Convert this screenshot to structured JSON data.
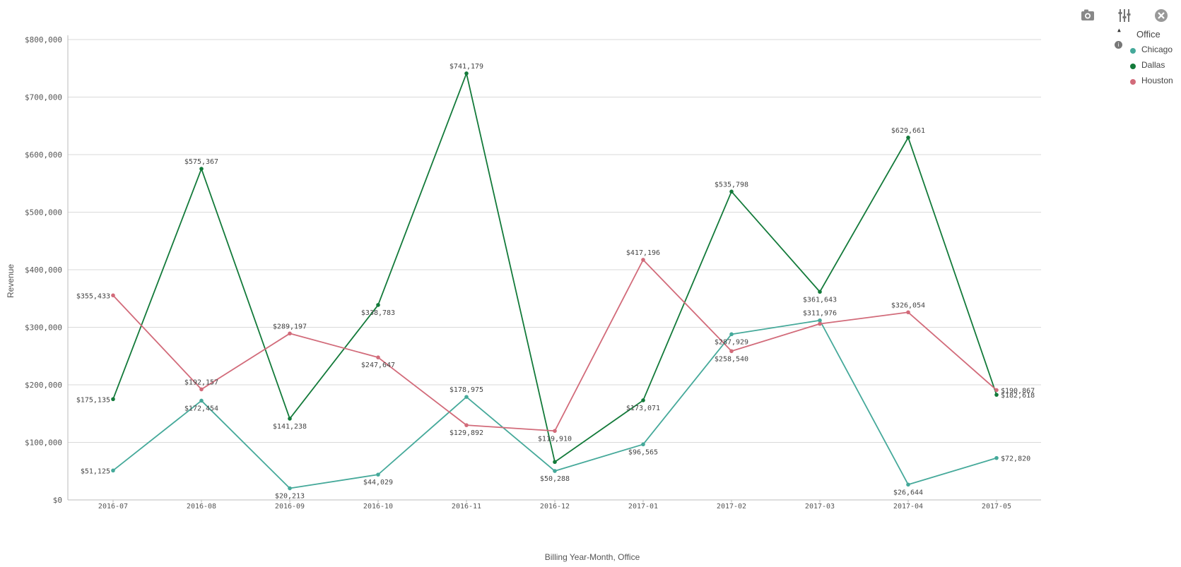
{
  "toolbar": {
    "snapshot_icon": "camera-icon",
    "exploration_icon": "sliders-icon",
    "close_icon": "close-icon"
  },
  "legend": {
    "title": "Office",
    "items": [
      {
        "label": "Chicago",
        "color": "#45a99a"
      },
      {
        "label": "Dallas",
        "color": "#137a3a"
      },
      {
        "label": "Houston",
        "color": "#d26b7a"
      }
    ]
  },
  "chart_data": {
    "type": "line",
    "title": "",
    "xlabel": "Billing Year-Month, Office",
    "ylabel": "Revenue",
    "ylim": [
      0,
      800000
    ],
    "yticks": [
      0,
      100000,
      200000,
      300000,
      400000,
      500000,
      600000,
      700000,
      800000
    ],
    "ytick_labels": [
      "$0",
      "$100,000",
      "$200,000",
      "$300,000",
      "$400,000",
      "$500,000",
      "$600,000",
      "$700,000",
      "$800,000"
    ],
    "grid": true,
    "legend_position": "top-right",
    "categories": [
      "2016-07",
      "2016-08",
      "2016-09",
      "2016-10",
      "2016-11",
      "2016-12",
      "2017-01",
      "2017-02",
      "2017-03",
      "2017-04",
      "2017-05"
    ],
    "series": [
      {
        "name": "Chicago",
        "color": "#45a99a",
        "values": [
          51125,
          172454,
          20213,
          44029,
          178975,
          50288,
          96565,
          287929,
          311976,
          26644,
          72820
        ],
        "labels": [
          "$51,125",
          "$172,454",
          "$20,213",
          "$44,029",
          "$178,975",
          "$50,288",
          "$96,565",
          "$287,929",
          "$311,976",
          "$26,644",
          "$72,820"
        ]
      },
      {
        "name": "Dallas",
        "color": "#137a3a",
        "values": [
          175135,
          575367,
          141238,
          338783,
          741179,
          66000,
          173071,
          535798,
          361643,
          629661,
          182618
        ],
        "labels": [
          "$175,135",
          "$575,367",
          "$141,238",
          "$338,783",
          "$741,179",
          "",
          "$173,071",
          "$535,798",
          "$361,643",
          "$629,661",
          "$182,618"
        ]
      },
      {
        "name": "Houston",
        "color": "#d26b7a",
        "values": [
          355433,
          192157,
          289197,
          247647,
          129892,
          119910,
          417196,
          258540,
          306000,
          326054,
          190867
        ],
        "labels": [
          "$355,433",
          "$192,157",
          "$289,197",
          "$247,647",
          "$129,892",
          "$119,910",
          "$417,196",
          "$258,540",
          "",
          "$326,054",
          "$190,867"
        ]
      }
    ]
  }
}
